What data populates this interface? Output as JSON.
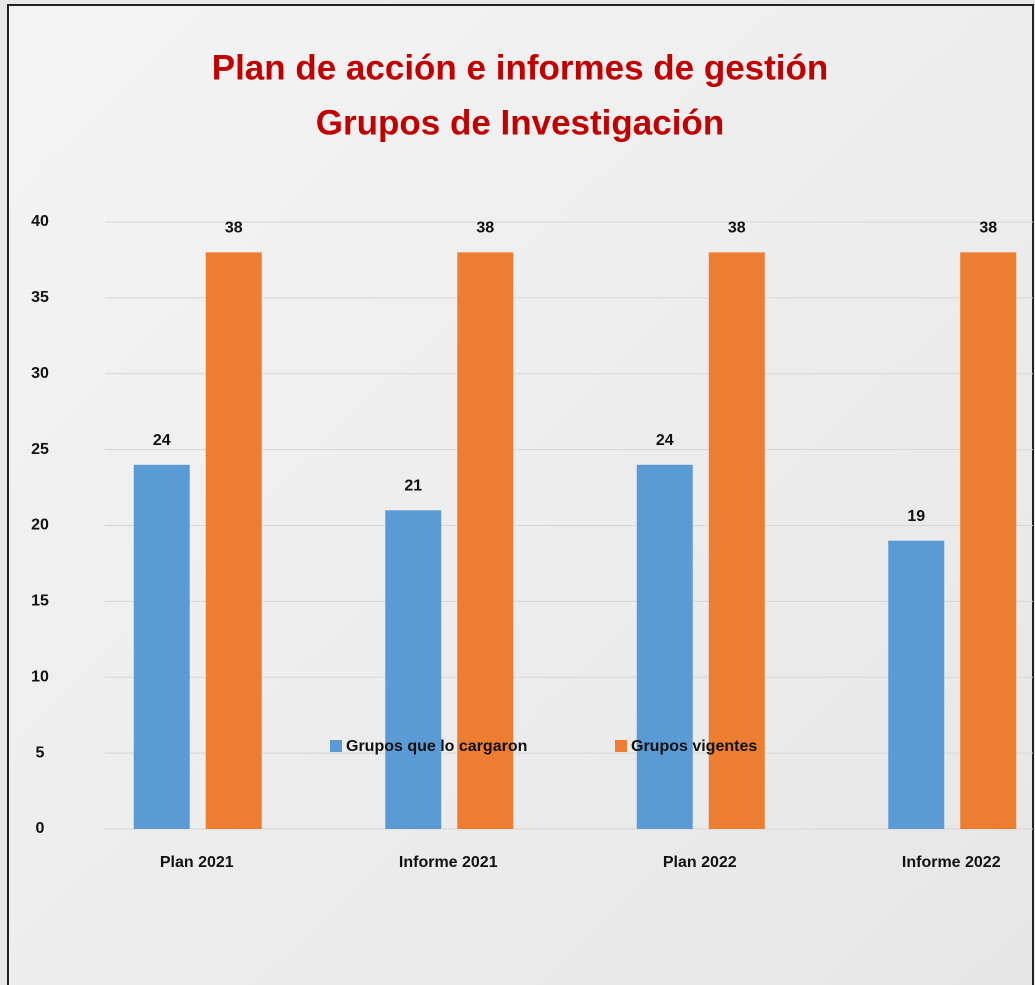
{
  "chart_data": {
    "type": "bar",
    "title": [
      "Plan de acción e informes de gestión",
      "Grupos de Investigación"
    ],
    "categories": [
      "Plan 2021",
      "Informe 2021",
      "Plan 2022",
      "Informe 2022"
    ],
    "series": [
      {
        "name": "Grupos que lo cargaron",
        "color": "#5b9bd5",
        "values": [
          24,
          21,
          24,
          19
        ]
      },
      {
        "name": "Grupos vigentes",
        "color": "#ed7d31",
        "values": [
          38,
          38,
          38,
          38
        ]
      }
    ],
    "ylim": [
      0,
      40
    ],
    "yticks": [
      0,
      5,
      10,
      15,
      20,
      25,
      30,
      35,
      40
    ],
    "grid": true,
    "legend": "bottom"
  }
}
